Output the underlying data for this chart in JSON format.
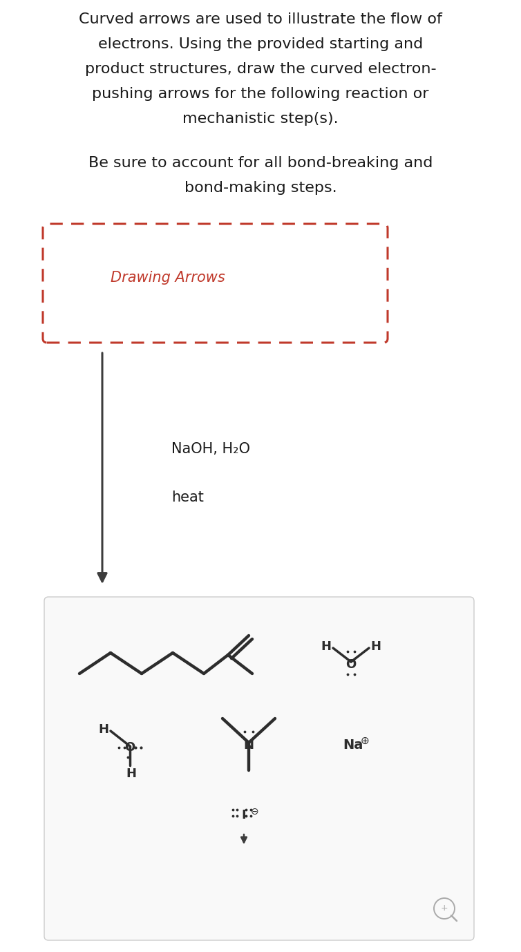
{
  "bg_color": "#ffffff",
  "title_lines": [
    "Curved arrows are used to illustrate the flow of",
    "electrons. Using the provided starting and",
    "product structures, draw the curved electron-",
    "pushing arrows for the following reaction or",
    "mechanistic step(s)."
  ],
  "subtitle_lines": [
    "Be sure to account for all bond-breaking and",
    "bond-making steps."
  ],
  "drawing_arrows_label": "Drawing Arrows",
  "reagents_line1": "NaOH, H₂O",
  "reagents_line2": "heat",
  "dashed_box_color": "#c0392b",
  "arrow_color": "#3d3d3d",
  "text_color": "#1a1a1a",
  "chem_color": "#2d2d2d",
  "font_size_title": 16,
  "font_size_reagent": 15,
  "result_box_border": "#cccccc",
  "result_box_bg": "#f9f9f9",
  "magnifier_color": "#aaaaaa"
}
